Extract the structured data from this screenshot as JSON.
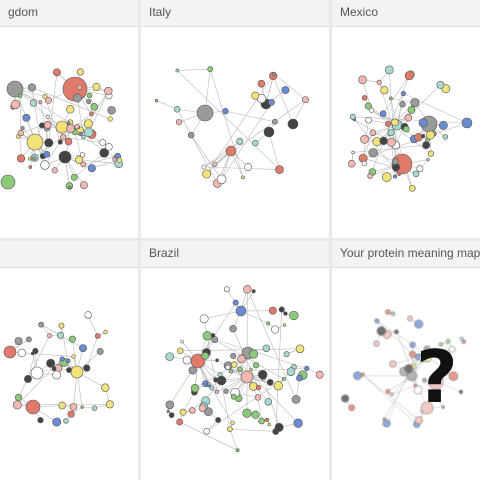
{
  "panels": [
    {
      "id": "uk",
      "title": "gdom",
      "seed": 11,
      "nodes": 70
    },
    {
      "id": "italy",
      "title": "Italy",
      "seed": 23,
      "nodes": 26
    },
    {
      "id": "mexico",
      "title": "Mexico",
      "seed": 37,
      "nodes": 60
    },
    {
      "id": "p4",
      "title": "",
      "seed": 41,
      "nodes": 38
    },
    {
      "id": "brazil",
      "title": "Brazil",
      "seed": 53,
      "nodes": 90
    },
    {
      "id": "yours",
      "title": "Your protein meaning map h",
      "seed": 67,
      "nodes": 45
    }
  ],
  "question_mark": "?",
  "colors": {
    "red": "#e07a6b",
    "green": "#8cc97a",
    "yellow": "#f2e27a",
    "grey": "#9a9a9a",
    "dark": "#444444",
    "blue": "#6a8bd0",
    "pink": "#f2b7b0",
    "white": "#ffffff",
    "teal": "#a8d8d0"
  }
}
